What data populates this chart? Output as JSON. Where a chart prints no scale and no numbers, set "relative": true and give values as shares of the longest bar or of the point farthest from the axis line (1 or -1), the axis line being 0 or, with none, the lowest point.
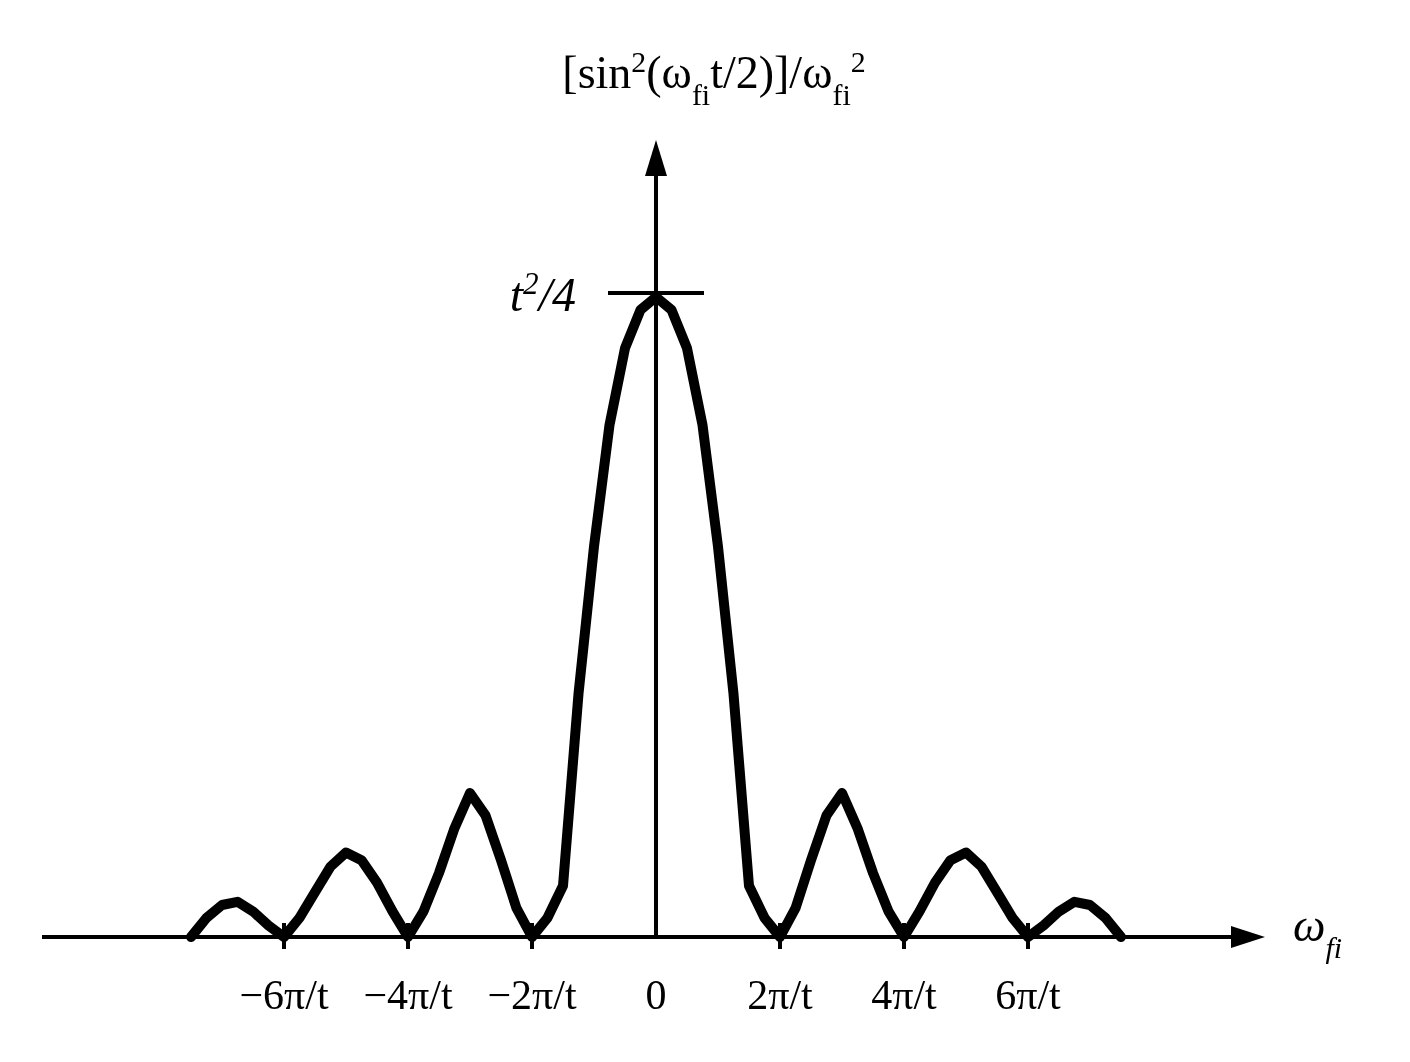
{
  "chart_data": {
    "type": "line",
    "ylabel": "[sin$^{2}$(ω$_{fi}$t/2)]/ω$_{fi}$$^{2}$",
    "xlabel": "ω$_{fi}$",
    "relative": true,
    "color": "#000000",
    "categories": [
      null,
      null,
      null,
      null,
      null,
      null,
      "−6π/t",
      null,
      null,
      null,
      null,
      null,
      null,
      null,
      "−4π/t",
      null,
      null,
      null,
      null,
      null,
      null,
      null,
      "−2π/t",
      null,
      null,
      null,
      null,
      null,
      null,
      null,
      "0",
      null,
      null,
      null,
      null,
      null,
      null,
      null,
      "2π/t",
      null,
      null,
      null,
      null,
      null,
      null,
      null,
      "4π/t",
      null,
      null,
      null,
      null,
      null,
      null,
      null,
      "6π/t",
      null,
      null,
      null,
      null,
      null,
      null
    ],
    "values": [
      0,
      0.03,
      0.05,
      0.055,
      0.04,
      0.018,
      0,
      0.03,
      0.07,
      0.11,
      0.132,
      0.12,
      0.085,
      0.04,
      0,
      0.04,
      0.1,
      0.17,
      0.225,
      0.19,
      0.12,
      0.045,
      0,
      0.03,
      0.08,
      0.38,
      0.61,
      0.8,
      0.92,
      0.98,
      1,
      0.98,
      0.92,
      0.8,
      0.61,
      0.38,
      0.08,
      0.03,
      0,
      0.045,
      0.12,
      0.19,
      0.225,
      0.17,
      0.1,
      0.04,
      0,
      0.04,
      0.085,
      0.12,
      0.132,
      0.11,
      0.07,
      0.03,
      0,
      0.018,
      0.04,
      0.055,
      0.05,
      0.03,
      0
    ],
    "annotations": [
      {
        "text": "t$^{2}$/4",
        "x": "0",
        "y": 1
      }
    ]
  }
}
